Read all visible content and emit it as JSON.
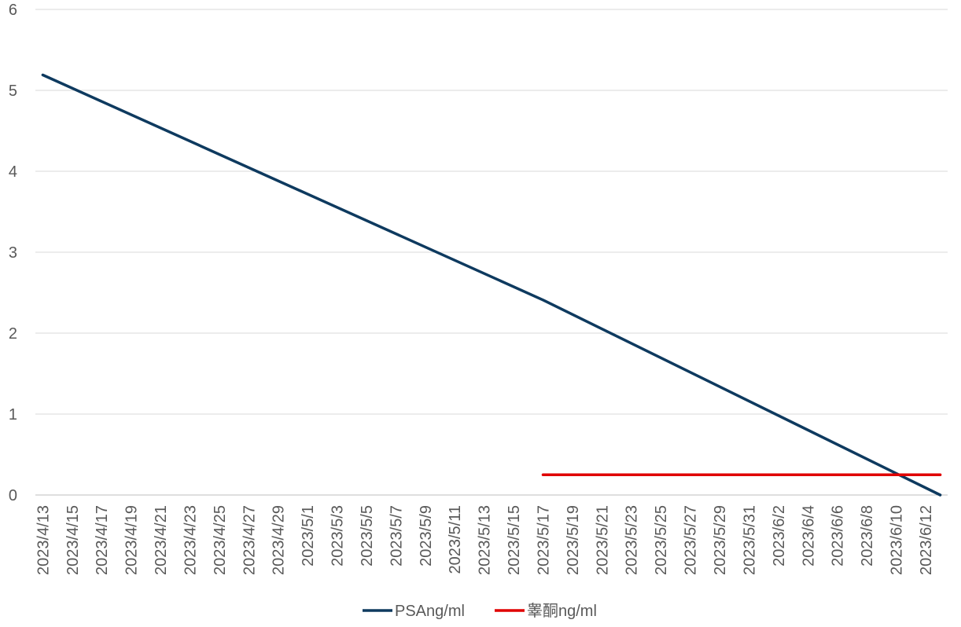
{
  "chart_data": {
    "type": "line",
    "title": "",
    "xlabel": "",
    "ylabel": "",
    "ylim": [
      0,
      6
    ],
    "y_ticks": [
      "0",
      "1",
      "2",
      "3",
      "4",
      "5",
      "6"
    ],
    "grid": true,
    "legend_position": "bottom",
    "x_tick_labels": [
      "2023/4/13",
      "2023/4/15",
      "2023/4/17",
      "2023/4/19",
      "2023/4/21",
      "2023/4/23",
      "2023/4/25",
      "2023/4/27",
      "2023/4/29",
      "2023/5/1",
      "2023/5/3",
      "2023/5/5",
      "2023/5/7",
      "2023/5/9",
      "2023/5/11",
      "2023/5/13",
      "2023/5/15",
      "2023/5/17",
      "2023/5/19",
      "2023/5/21",
      "2023/5/23",
      "2023/5/25",
      "2023/5/27",
      "2023/5/29",
      "2023/5/31",
      "2023/6/2",
      "2023/6/4",
      "2023/6/6",
      "2023/6/8",
      "2023/6/10",
      "2023/6/12"
    ],
    "x_range": [
      "2023/4/13",
      "2023/6/13"
    ],
    "series": [
      {
        "name": "PSAng/ml",
        "color": "#0e3a5f",
        "points": [
          {
            "x": "2023/4/13",
            "y": 5.19
          },
          {
            "x": "2023/5/17",
            "y": 2.41
          },
          {
            "x": "2023/6/13",
            "y": 0.0
          }
        ]
      },
      {
        "name": "睾酮ng/ml",
        "color": "#e00000",
        "points": [
          {
            "x": "2023/5/17",
            "y": 0.25
          },
          {
            "x": "2023/6/13",
            "y": 0.25
          }
        ]
      }
    ]
  }
}
